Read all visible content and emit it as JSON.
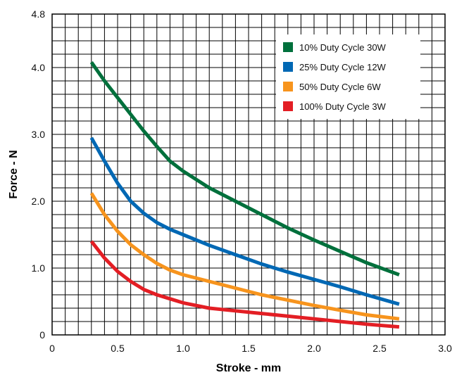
{
  "chart_data": {
    "type": "line",
    "title": "",
    "xlabel": "Stroke - mm",
    "ylabel": "Force - N",
    "xlim": [
      0,
      3.0
    ],
    "ylim": [
      0,
      4.8
    ],
    "x_ticks": [
      "0",
      "0.5",
      "1.0",
      "1.5",
      "2.0",
      "2.5",
      "3.0"
    ],
    "y_ticks": [
      "0",
      "1.0",
      "2.0",
      "3.0",
      "4.0",
      "4.8"
    ],
    "grid": true,
    "legend_position": "top-right",
    "series": [
      {
        "name": "10% Duty Cycle 30W",
        "color": "#00703c",
        "x": [
          0.3,
          0.4,
          0.5,
          0.6,
          0.7,
          0.8,
          0.9,
          1.0,
          1.2,
          1.4,
          1.6,
          1.8,
          2.0,
          2.2,
          2.4,
          2.65
        ],
        "y": [
          4.08,
          3.8,
          3.55,
          3.3,
          3.05,
          2.82,
          2.6,
          2.45,
          2.2,
          2.0,
          1.8,
          1.6,
          1.42,
          1.25,
          1.08,
          0.9
        ]
      },
      {
        "name": "25% Duty Cycle 12W",
        "color": "#0068b4",
        "x": [
          0.3,
          0.4,
          0.5,
          0.6,
          0.7,
          0.8,
          0.9,
          1.0,
          1.2,
          1.4,
          1.6,
          1.8,
          2.0,
          2.2,
          2.4,
          2.65
        ],
        "y": [
          2.95,
          2.6,
          2.27,
          2.0,
          1.82,
          1.68,
          1.58,
          1.5,
          1.34,
          1.2,
          1.06,
          0.94,
          0.83,
          0.72,
          0.6,
          0.46
        ]
      },
      {
        "name": "50% Duty Cycle 6W",
        "color": "#f7941d",
        "x": [
          0.3,
          0.4,
          0.5,
          0.6,
          0.7,
          0.8,
          0.9,
          1.0,
          1.2,
          1.4,
          1.6,
          1.8,
          2.0,
          2.2,
          2.4,
          2.65
        ],
        "y": [
          2.12,
          1.8,
          1.55,
          1.35,
          1.2,
          1.07,
          0.97,
          0.9,
          0.8,
          0.7,
          0.6,
          0.52,
          0.44,
          0.37,
          0.3,
          0.24
        ]
      },
      {
        "name": "100% Duty Cycle 3W",
        "color": "#e31e24",
        "x": [
          0.3,
          0.4,
          0.5,
          0.6,
          0.7,
          0.8,
          0.9,
          1.0,
          1.2,
          1.4,
          1.6,
          1.8,
          2.0,
          2.2,
          2.4,
          2.65
        ],
        "y": [
          1.4,
          1.15,
          0.95,
          0.8,
          0.68,
          0.6,
          0.54,
          0.48,
          0.4,
          0.36,
          0.32,
          0.28,
          0.24,
          0.2,
          0.16,
          0.12
        ]
      }
    ]
  }
}
